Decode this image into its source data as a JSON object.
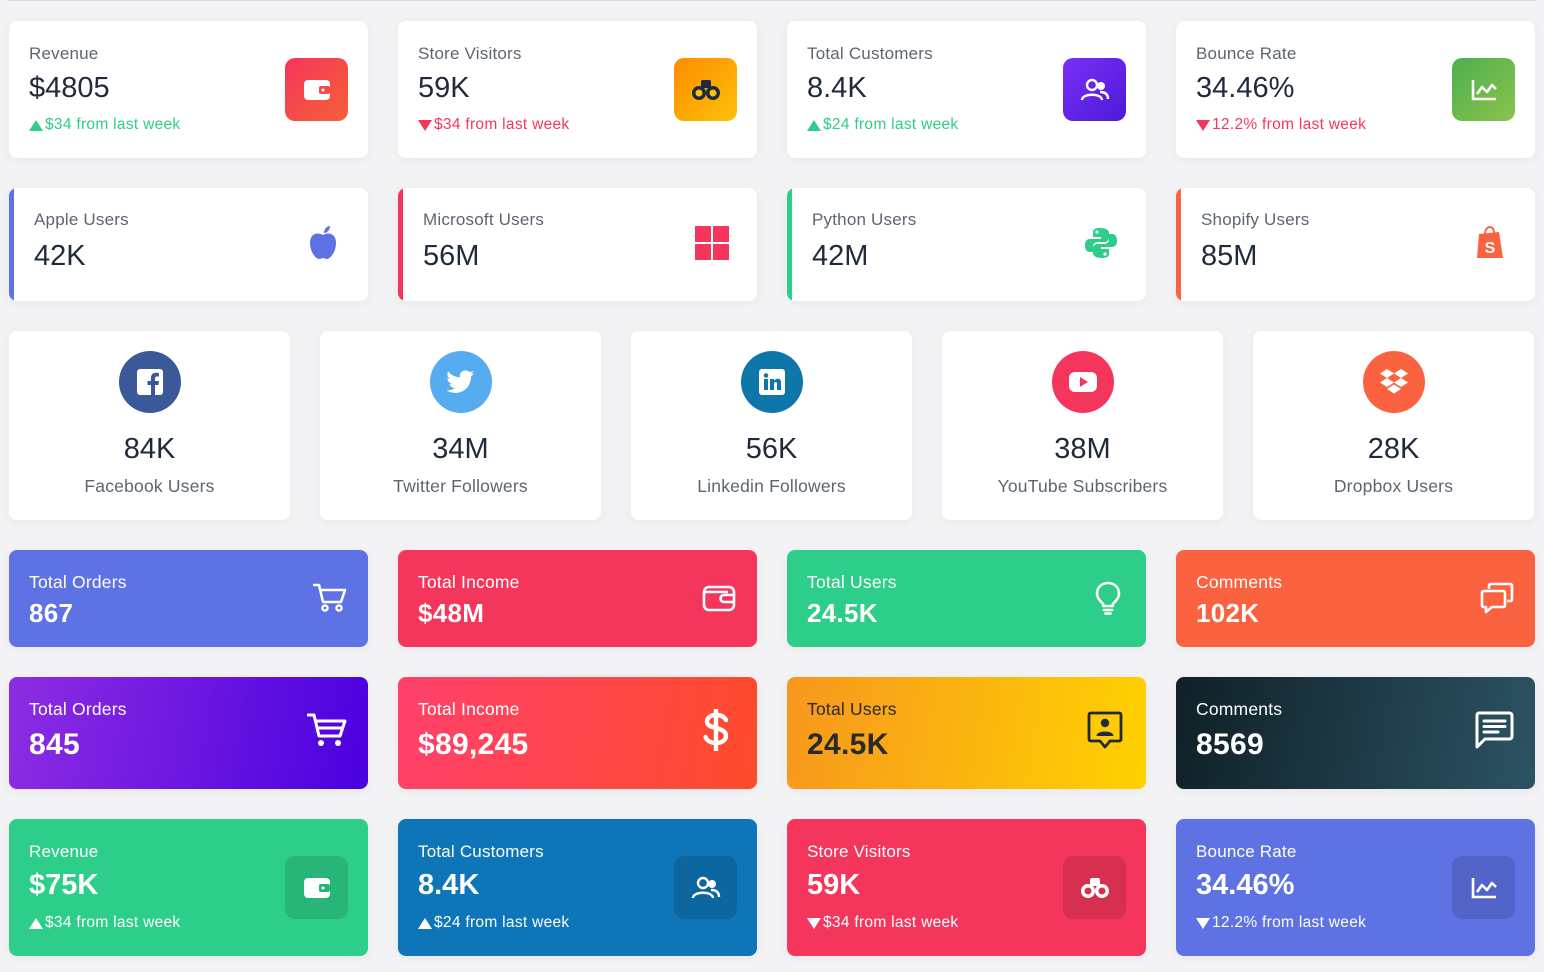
{
  "colors": {
    "primary": "#5e72e4",
    "danger": "#f5365c",
    "success": "#2dce89",
    "warning": "#fb6340",
    "info": "#11cdef"
  },
  "row1": [
    {
      "label": "Revenue",
      "value": "$4805",
      "trend": "$34 from last week",
      "direction": "up",
      "icon": "wallet-icon"
    },
    {
      "label": "Store Visitors",
      "value": "59K",
      "trend": "$34 from last week",
      "direction": "down",
      "icon": "binoculars-icon"
    },
    {
      "label": "Total Customers",
      "value": "8.4K",
      "trend": "$24 from last week",
      "direction": "up",
      "icon": "users-icon"
    },
    {
      "label": "Bounce Rate",
      "value": "34.46%",
      "trend": "12.2% from last week",
      "direction": "down",
      "icon": "chart-line-icon"
    }
  ],
  "row2": [
    {
      "label": "Apple Users",
      "value": "42K",
      "icon": "apple-icon"
    },
    {
      "label": "Microsoft Users",
      "value": "56M",
      "icon": "windows-icon"
    },
    {
      "label": "Python Users",
      "value": "42M",
      "icon": "python-icon"
    },
    {
      "label": "Shopify Users",
      "value": "85M",
      "icon": "shopify-icon"
    }
  ],
  "row3": [
    {
      "value": "84K",
      "label": "Facebook Users",
      "icon": "facebook-icon"
    },
    {
      "value": "34M",
      "label": "Twitter Followers",
      "icon": "twitter-icon"
    },
    {
      "value": "56K",
      "label": "Linkedin Followers",
      "icon": "linkedin-icon"
    },
    {
      "value": "38M",
      "label": "YouTube Subscribers",
      "icon": "youtube-icon"
    },
    {
      "value": "28K",
      "label": "Dropbox Users",
      "icon": "dropbox-icon"
    }
  ],
  "row4": [
    {
      "label": "Total Orders",
      "value": "867",
      "icon": "cart-icon"
    },
    {
      "label": "Total Income",
      "value": "$48M",
      "icon": "wallet-icon"
    },
    {
      "label": "Total Users",
      "value": "24.5K",
      "icon": "lightbulb-icon"
    },
    {
      "label": "Comments",
      "value": "102K",
      "icon": "chat-icon"
    }
  ],
  "row5": [
    {
      "label": "Total Orders",
      "value": "845",
      "icon": "cart-icon"
    },
    {
      "label": "Total Income",
      "value": "$89,245",
      "icon": "dollar-icon"
    },
    {
      "label": "Total Users",
      "value": "24.5K",
      "icon": "user-badge-icon"
    },
    {
      "label": "Comments",
      "value": "8569",
      "icon": "message-icon"
    }
  ],
  "row6": [
    {
      "label": "Revenue",
      "value": "$75K",
      "trend": "$34 from last week",
      "direction": "up",
      "icon": "wallet-icon"
    },
    {
      "label": "Total Customers",
      "value": "8.4K",
      "trend": "$24 from last week",
      "direction": "up",
      "icon": "users-icon"
    },
    {
      "label": "Store Visitors",
      "value": "59K",
      "trend": "$34 from last week",
      "direction": "down",
      "icon": "binoculars-icon"
    },
    {
      "label": "Bounce Rate",
      "value": "34.46%",
      "trend": "12.2% from last week",
      "direction": "down",
      "icon": "chart-line-icon"
    }
  ]
}
